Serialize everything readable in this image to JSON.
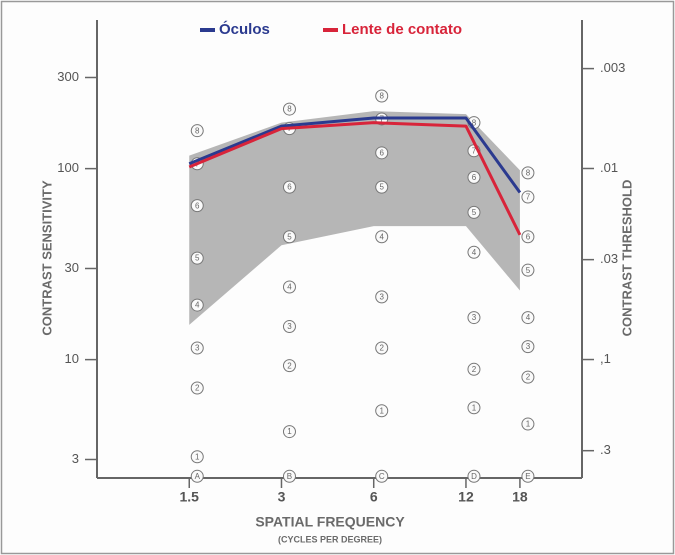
{
  "chart_data": {
    "type": "line",
    "legend_position": "top",
    "y_label": "CONTRAST SENSITIVITY",
    "y2_label": "CONTRAST THRESHOLD",
    "x_label": "SPATIAL FREQUENCY",
    "x_sublabel": "(CYCLES PER DEGREE)",
    "log_x": true,
    "log_y": true,
    "x": [
      1.5,
      3,
      6,
      12,
      18
    ],
    "xlim": [
      0.75,
      28.7
    ],
    "xticks": [
      1.5,
      3,
      6,
      12,
      18
    ],
    "ylim": [
      2.4,
      600
    ],
    "yticks": [
      3,
      10,
      30,
      100,
      300
    ],
    "y2lim": [
      0.417,
      0.00167
    ],
    "y2ticks": [
      {
        "value": 0.003,
        "label": ".003"
      },
      {
        "value": 0.01,
        "label": ".01"
      },
      {
        "value": 0.03,
        "label": ".03"
      },
      {
        "value": 0.1,
        "label": ",1"
      },
      {
        "value": 0.3,
        "label": ".3"
      }
    ],
    "band": {
      "color": "#9e9e9e",
      "upper": [
        117,
        174,
        200,
        193,
        98
      ],
      "lower": [
        15.2,
        39.7,
        50,
        50,
        23
      ]
    },
    "series": [
      {
        "name": "Óculos",
        "color": "#2b3a8f",
        "values": [
          106,
          167,
          184,
          184,
          75
        ]
      },
      {
        "name": "Lente de contato",
        "color": "#d8243a",
        "values": [
          102,
          162,
          174,
          167,
          45
        ]
      }
    ],
    "chart_columns": [
      {
        "letter": "A",
        "letter_value": 2.45,
        "labels": [
          "1",
          "2",
          "3",
          "4",
          "5",
          "6",
          "7",
          "8"
        ],
        "values": [
          3.1,
          7.1,
          11.5,
          19.3,
          34,
          64,
          106,
          158
        ]
      },
      {
        "letter": "B",
        "letter_value": 2.45,
        "labels": [
          "1",
          "2",
          "3",
          "4",
          "5",
          "6",
          "7",
          "8"
        ],
        "values": [
          4.2,
          9.3,
          14.9,
          24,
          44,
          80,
          162,
          205
        ]
      },
      {
        "letter": "C",
        "letter_value": 2.45,
        "labels": [
          "1",
          "2",
          "3",
          "4",
          "5",
          "6",
          "7",
          "8"
        ],
        "values": [
          5.4,
          11.5,
          21.3,
          44,
          80,
          121,
          182,
          240
        ]
      },
      {
        "letter": "D",
        "letter_value": 2.45,
        "labels": [
          "1",
          "2",
          "3",
          "4",
          "5",
          "6",
          "7",
          "8"
        ],
        "values": [
          5.6,
          8.9,
          16.6,
          36.5,
          59,
          90,
          124,
          174
        ]
      },
      {
        "letter": "E",
        "letter_value": 2.45,
        "labels": [
          "1",
          "2",
          "3",
          "4",
          "5",
          "6",
          "7",
          "8"
        ],
        "values": [
          4.6,
          8.1,
          11.7,
          16.6,
          29.4,
          44,
          71,
          95
        ]
      }
    ]
  }
}
